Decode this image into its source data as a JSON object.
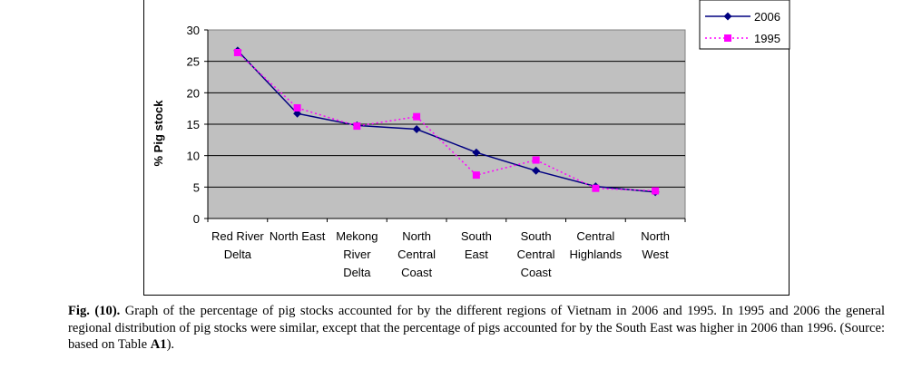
{
  "chart_data": {
    "type": "line",
    "ylabel": "% Pig stock",
    "ylim": [
      0,
      30
    ],
    "yticks": [
      "0",
      "5",
      "10",
      "15",
      "20",
      "25",
      "30"
    ],
    "categories": [
      [
        "Red River",
        "Delta"
      ],
      [
        "North East"
      ],
      [
        "Mekong",
        "River",
        "Delta"
      ],
      [
        "North",
        "Central",
        "Coast"
      ],
      [
        "South",
        "East"
      ],
      [
        "South",
        "Central",
        "Coast"
      ],
      [
        "Central",
        "Highlands"
      ],
      [
        "North",
        "West"
      ]
    ],
    "series": [
      {
        "name": "2006",
        "color": "#000080",
        "values": [
          26.7,
          16.7,
          14.8,
          14.2,
          10.5,
          7.6,
          5.1,
          4.2
        ]
      },
      {
        "name": "1995",
        "color": "#ff00ff",
        "values": [
          26.4,
          17.6,
          14.7,
          16.2,
          6.9,
          9.3,
          4.8,
          4.4
        ]
      }
    ],
    "plot_background": "#c0c0c0",
    "legend_position": "top-right"
  },
  "caption": {
    "label": "Fig. (10).",
    "text1": " Graph of the percentage of pig stocks accounted for by the different regions of Vietnam in 2006 and 1995. In 1995 and 2006 the general regional distribution of pig stocks were similar, except that the percentage of pigs accounted for by the South East was higher in 2006 than 1996. (Source: based on Table ",
    "table_ref": "A1",
    "text2": ")."
  }
}
